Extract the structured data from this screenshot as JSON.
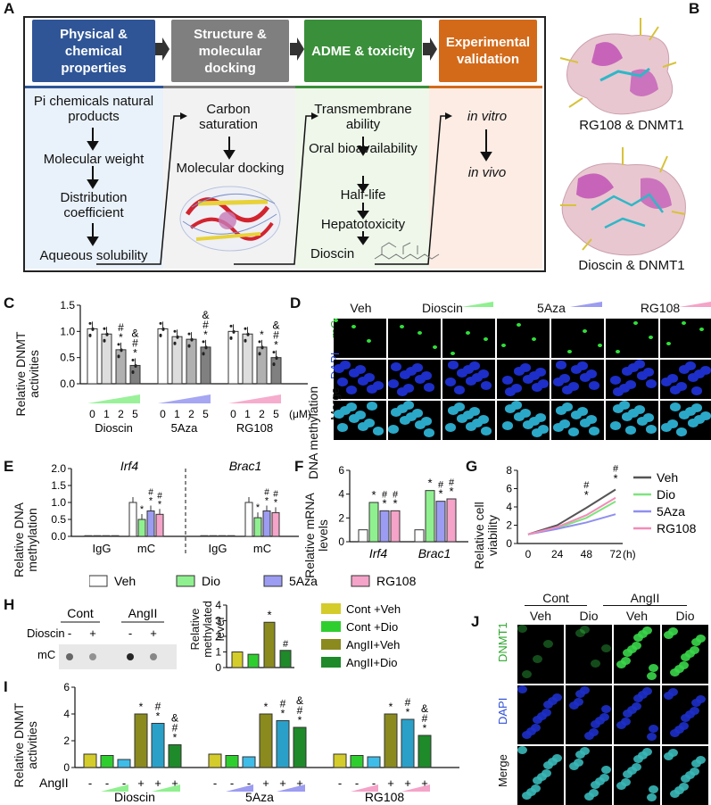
{
  "panelA": {
    "label": "A",
    "headers": [
      {
        "text": "Physical & chemical properties",
        "color": "#2f5597"
      },
      {
        "text": "Structure & molecular docking",
        "color": "#7f7f7f"
      },
      {
        "text": "ADME & toxicity",
        "color": "#3a8f3a"
      },
      {
        "text": "Experimental validation",
        "color": "#d36a1a"
      }
    ],
    "col1": [
      "Pi chemicals natural products",
      "Molecular weight",
      "Distribution coefficient",
      "Aqueous solubility"
    ],
    "col2": [
      "Carbon saturation",
      "Molecular docking"
    ],
    "col3": [
      "Transmembrane ability",
      "Oral bioavailability",
      "Half-life",
      "Hepatotoxicity",
      "Dioscin"
    ],
    "col4": [
      "in vitro",
      "in vivo"
    ]
  },
  "panelB": {
    "label": "B",
    "caption1": "RG108 & DNMT1",
    "caption2": "Dioscin & DNMT1"
  },
  "panelC": {
    "label": "C",
    "ylabel": "Relative DNMT activities",
    "doses": [
      "0",
      "1",
      "2",
      "5"
    ],
    "unit": "(μM)",
    "groups": [
      "Dioscin",
      "5Aza",
      "RG108"
    ],
    "chart_data": {
      "type": "bar",
      "categories": [
        "Dioscin 0",
        "Dioscin 1",
        "Dioscin 2",
        "Dioscin 5",
        "5Aza 0",
        "5Aza 1",
        "5Aza 2",
        "5Aza 5",
        "RG108 0",
        "RG108 1",
        "RG108 2",
        "RG108 5"
      ],
      "values": [
        1.05,
        0.95,
        0.65,
        0.35,
        1.05,
        0.9,
        0.85,
        0.7,
        1.0,
        0.95,
        0.7,
        0.5
      ],
      "ylim": [
        0,
        1.5
      ],
      "yticks": [
        "0.0",
        "0.5",
        "1.0",
        "1.5"
      ],
      "marks": [
        "",
        "",
        "*",
        "*",
        "",
        "",
        "",
        "*",
        "",
        "",
        "*",
        "*"
      ],
      "marks2": [
        "",
        "",
        "#",
        "#",
        "",
        "",
        "",
        "#",
        "",
        "",
        "",
        "#"
      ],
      "marks3": [
        "",
        "",
        "",
        "&",
        "",
        "",
        "",
        "&",
        "",
        "",
        "",
        "&"
      ]
    }
  },
  "panelD": {
    "label": "D",
    "cols": [
      "Veh",
      "Dioscin",
      "5Aza",
      "RG108"
    ],
    "rows": [
      "mC",
      "DAPI",
      "Merge"
    ],
    "side": "DNA methylation"
  },
  "panelE": {
    "label": "E",
    "ylabel": "Relative DNA methylation",
    "genes": [
      "Irf4",
      "Brac1"
    ],
    "xcats": [
      "IgG",
      "mC",
      "IgG",
      "mC"
    ],
    "chart_data": {
      "type": "bar",
      "categories": [
        "Irf4 IgG",
        "Irf4 mC",
        "Brac1 IgG",
        "Brac1 mC"
      ],
      "series": [
        {
          "name": "Veh",
          "values": [
            0.02,
            1.0,
            0.02,
            1.0
          ]
        },
        {
          "name": "Dio",
          "values": [
            0.02,
            0.5,
            0.02,
            0.55
          ]
        },
        {
          "name": "5Aza",
          "values": [
            0.02,
            0.75,
            0.02,
            0.75
          ]
        },
        {
          "name": "RG108",
          "values": [
            0.02,
            0.65,
            0.02,
            0.7
          ]
        }
      ],
      "ylim": [
        0,
        2.0
      ],
      "yticks": [
        "0.0",
        "0.5",
        "1.0",
        "1.5",
        "2.0"
      ]
    }
  },
  "panelF": {
    "label": "F",
    "ylabel": "Relative mRNA levels",
    "chart_data": {
      "type": "bar",
      "categories": [
        "Irf4",
        "Brac1"
      ],
      "series": [
        {
          "name": "Veh",
          "values": [
            1.0,
            1.0
          ]
        },
        {
          "name": "Dio",
          "values": [
            3.3,
            4.3
          ]
        },
        {
          "name": "5Aza",
          "values": [
            2.6,
            3.4
          ]
        },
        {
          "name": "RG108",
          "values": [
            2.6,
            3.6
          ]
        }
      ],
      "ylim": [
        0,
        6
      ],
      "yticks": [
        "0",
        "2",
        "4",
        "6"
      ]
    }
  },
  "panelG": {
    "label": "G",
    "ylabel": "Relative cell viability",
    "xunit": "(h)",
    "chart_data": {
      "type": "line",
      "x": [
        0,
        24,
        48,
        72
      ],
      "series": [
        {
          "name": "Veh",
          "color": "#555555",
          "values": [
            1.0,
            2.0,
            3.9,
            5.9
          ]
        },
        {
          "name": "Dio",
          "color": "#7ee37e",
          "values": [
            1.0,
            1.7,
            2.8,
            4.6
          ]
        },
        {
          "name": "5Aza",
          "color": "#8f8fef",
          "values": [
            1.0,
            1.6,
            2.3,
            3.2
          ]
        },
        {
          "name": "RG108",
          "color": "#f28cb8",
          "values": [
            1.0,
            1.8,
            3.1,
            5.0
          ]
        }
      ],
      "ylim": [
        0,
        8
      ],
      "yticks": [
        "0",
        "2",
        "4",
        "6",
        "8"
      ],
      "xticks": [
        "0",
        "24",
        "48",
        "72"
      ]
    }
  },
  "legendEFG": [
    "Veh",
    "Dio",
    "5Aza",
    "RG108"
  ],
  "panelH": {
    "label": "H",
    "blot_groups": [
      "Cont",
      "AngII"
    ],
    "blot_row": "Dioscin",
    "blot_signs": [
      "-",
      "+",
      "-",
      "+"
    ],
    "blot_band": "mC",
    "ylabel": "Relative methylated level",
    "legend": [
      "Cont +Veh",
      "Cont +Dio",
      "AngII+Veh",
      "AngII+Dio"
    ],
    "chart_data": {
      "type": "bar",
      "categories": [
        "Cont +Veh",
        "Cont +Dio",
        "AngII+Veh",
        "AngII+Dio"
      ],
      "values": [
        1.0,
        0.85,
        2.9,
        1.1
      ],
      "ylim": [
        0,
        4
      ],
      "yticks": [
        "0",
        "1",
        "2",
        "3",
        "4"
      ]
    }
  },
  "panelI": {
    "label": "I",
    "ylabel": "Relative DNMT activities",
    "angII": "AngII",
    "signs": [
      "-",
      "-",
      "-",
      "+",
      "+",
      "+",
      "-",
      "-",
      "-",
      "+",
      "+",
      "+",
      "-",
      "-",
      "-",
      "+",
      "+",
      "+"
    ],
    "groups": [
      "Dioscin",
      "5Aza",
      "RG108"
    ],
    "chart_data": {
      "type": "bar",
      "values": [
        1.0,
        0.9,
        0.6,
        4.0,
        3.3,
        1.7,
        1.0,
        0.9,
        0.8,
        4.0,
        3.5,
        3.0,
        1.0,
        0.9,
        0.8,
        4.0,
        3.6,
        2.4
      ],
      "ylim": [
        0,
        6
      ],
      "yticks": [
        "0",
        "2",
        "4",
        "6"
      ]
    }
  },
  "panelJ": {
    "label": "J",
    "groups": [
      "Cont",
      "AngII"
    ],
    "cols": [
      "Veh",
      "Dio",
      "Veh",
      "Dio"
    ],
    "rows": [
      "DNMT1",
      "DAPI",
      "Merge"
    ]
  }
}
